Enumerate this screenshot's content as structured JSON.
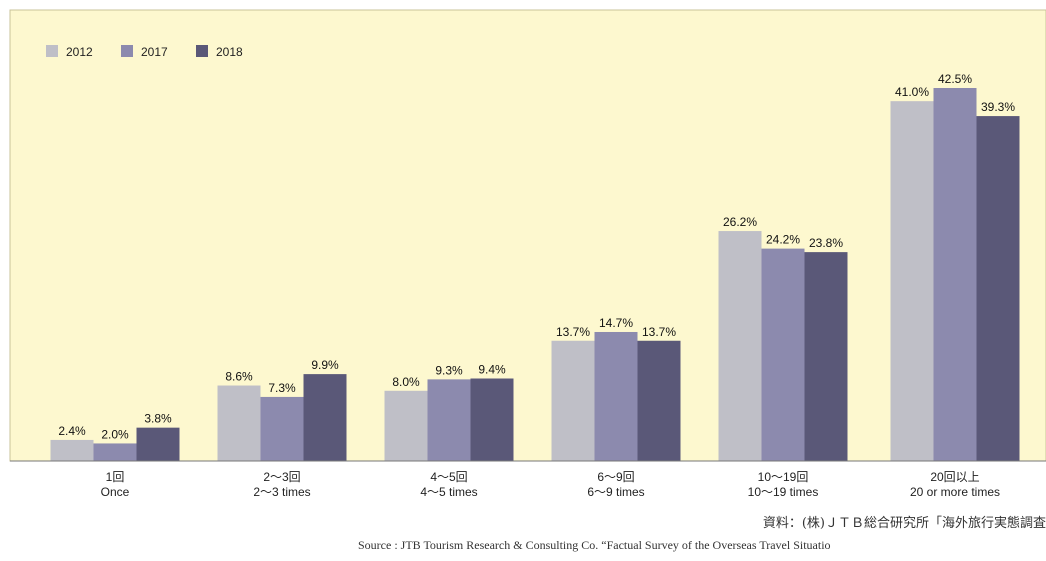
{
  "colors": {
    "plot_background": "#fdf8cf",
    "plot_border": "#c9c39a",
    "series": [
      "#bfbfc7",
      "#8c8aae",
      "#5a5878"
    ]
  },
  "source": {
    "jp": "資料：(株)ＪＴＢ総合研究所「海外旅行実態調査",
    "en": "Source :   JTB Tourism Research & Consulting Co. “Factual Survey of the Overseas Travel Situatio"
  },
  "chart_data": {
    "type": "bar",
    "title": "",
    "xlabel": "",
    "ylabel": "",
    "ylim": [
      0,
      45
    ],
    "grid": false,
    "legend_position": "top-left",
    "categories": [
      [
        "1回",
        "Once"
      ],
      [
        "2～3回",
        "2～3 times"
      ],
      [
        "4～5回",
        "4～5 times"
      ],
      [
        "6～9回",
        "6～9 times"
      ],
      [
        "10～19回",
        "10～19 times"
      ],
      [
        "20回以上",
        "20 or more times"
      ]
    ],
    "series": [
      {
        "name": "2012",
        "values": [
          2.4,
          8.6,
          8.0,
          13.7,
          26.2,
          41.0
        ],
        "labels": [
          "2.4%",
          "8.6%",
          "8.0%",
          "13.7%",
          "26.2%",
          "41.0%"
        ]
      },
      {
        "name": "2017",
        "values": [
          2.0,
          7.3,
          9.3,
          14.7,
          24.2,
          42.5
        ],
        "labels": [
          "2.0%",
          "7.3%",
          "9.3%",
          "14.7%",
          "24.2%",
          "42.5%"
        ]
      },
      {
        "name": "2018",
        "values": [
          3.8,
          9.9,
          9.4,
          13.7,
          23.8,
          39.3
        ],
        "labels": [
          "3.8%",
          "9.9%",
          "9.4%",
          "13.7%",
          "23.8%",
          "39.3%"
        ]
      }
    ]
  }
}
